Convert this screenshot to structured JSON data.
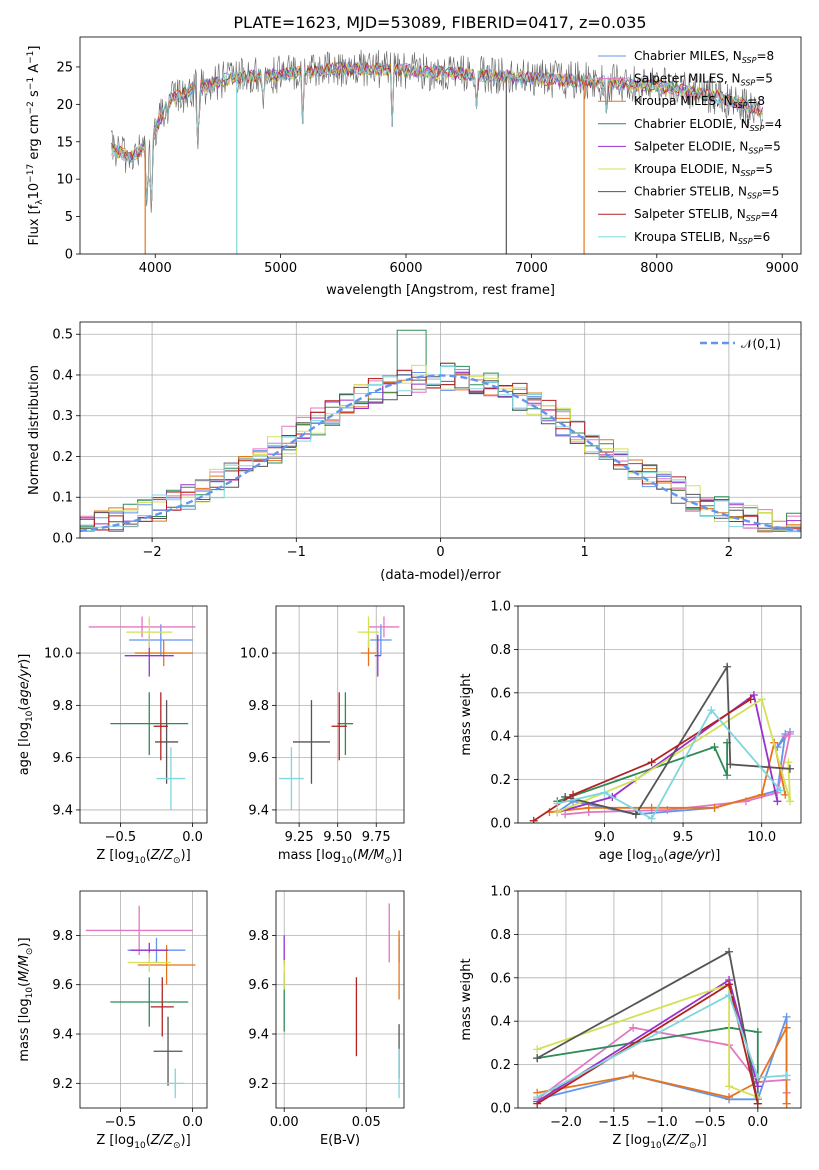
{
  "figure": {
    "title": "PLATE=1623, MJD=53089, FIBERID=0417, z=0.035",
    "models": [
      {
        "name": "Chabrier MILES, N",
        "nssp": "=8",
        "color": "#6495ed"
      },
      {
        "name": "Salpeter MILES, N",
        "nssp": "=5",
        "color": "#e377c2"
      },
      {
        "name": "Kroupa MILES, N",
        "nssp": "=8",
        "color": "#b8860b"
      },
      {
        "name": "Chabrier ELODIE, N",
        "nssp": "=4",
        "color": "#2e8b57"
      },
      {
        "name": "Salpeter ELODIE, N",
        "nssp": "=5",
        "color": "#9932cc"
      },
      {
        "name": "Kroupa ELODIE, N",
        "nssp": "=5",
        "color": "#d4e157"
      },
      {
        "name": "Chabrier STELIB, N",
        "nssp": "=5",
        "color": "#555555"
      },
      {
        "name": "Salpeter STELIB, N",
        "nssp": "=4",
        "color": "#b22222"
      },
      {
        "name": "Kroupa STELIB, N",
        "nssp": "=6",
        "color": "#7fd6dc"
      }
    ],
    "ssp_subscript": "SSP",
    "extra_colors": {
      "orange": "#e8741a"
    }
  },
  "chart_data": [
    {
      "id": "spectrum",
      "type": "line",
      "title": "PLATE=1623, MJD=53089, FIBERID=0417, z=0.035",
      "xlabel": "wavelength [Angstrom, rest frame]",
      "ylabel_parts": [
        "Flux [f",
        "λ",
        "10",
        "−17",
        " erg cm",
        "−2",
        " s",
        "−1",
        " A",
        "−1",
        "]"
      ],
      "xlim": [
        3400,
        9150
      ],
      "ylim": [
        0,
        29
      ],
      "xticks": [
        4000,
        5000,
        6000,
        7000,
        8000,
        9000
      ],
      "yticks": [
        0,
        5,
        10,
        15,
        20,
        25
      ],
      "x_range_plotted": [
        3650,
        8850
      ],
      "continuum_anchors": [
        [
          3650,
          14
        ],
        [
          3800,
          13
        ],
        [
          3950,
          14.5
        ],
        [
          4100,
          20.5
        ],
        [
          4300,
          22
        ],
        [
          4600,
          23.5
        ],
        [
          5000,
          24
        ],
        [
          5500,
          24.8
        ],
        [
          6000,
          24.6
        ],
        [
          6500,
          24
        ],
        [
          7000,
          23.5
        ],
        [
          7500,
          23
        ],
        [
          8000,
          22.5
        ],
        [
          8500,
          21
        ],
        [
          8850,
          19
        ]
      ],
      "drop_to_zero_at": [
        3920,
        4650,
        6800,
        7420
      ],
      "absorption_dips": [
        [
          3933,
          6
        ],
        [
          3968,
          5.5
        ],
        [
          4101,
          17
        ],
        [
          4340,
          14
        ],
        [
          4861,
          19
        ],
        [
          5175,
          17
        ],
        [
          5890,
          17
        ],
        [
          6563,
          19
        ],
        [
          7600,
          18
        ]
      ],
      "grid": false,
      "legend": "top-right"
    },
    {
      "id": "residual-histogram",
      "type": "histogram",
      "xlabel": "(data-model)/error",
      "ylabel": "Normed distribution",
      "xlim": [
        -2.5,
        2.5
      ],
      "ylim": [
        0,
        0.53
      ],
      "xticks": [
        -2,
        -1,
        0,
        1,
        2
      ],
      "yticks": [
        0.0,
        0.1,
        0.2,
        0.3,
        0.4,
        0.5
      ],
      "bin_width": 0.1,
      "peak_value": 0.51,
      "peak_at": -0.2,
      "reference_curve": {
        "label": "𝒩(0,1)",
        "mean": 0,
        "sigma": 1
      },
      "grid": true,
      "legend": "top-right"
    },
    {
      "id": "age-vs-Z",
      "type": "errorbar",
      "xlabel": "Z [log10(Z/Z⊙)]",
      "ylabel": "age  [log10(age/yr)]",
      "xlim": [
        -0.78,
        0.1
      ],
      "ylim": [
        9.35,
        10.18
      ],
      "xticks": [
        -0.5,
        0.0
      ],
      "yticks": [
        9.4,
        9.6,
        9.8,
        10.0
      ],
      "points": [
        {
          "model": 0,
          "x": -0.22,
          "y": 10.05,
          "xerr": 0.22,
          "yerr": 0.06
        },
        {
          "model": 1,
          "x": -0.35,
          "y": 10.1,
          "xerr": 0.37,
          "yerr": 0.04
        },
        {
          "model": 2,
          "x": -0.2,
          "y": 10.0,
          "xerr": 0.2,
          "yerr": 0.05
        },
        {
          "model": 3,
          "x": -0.3,
          "y": 9.73,
          "xerr": 0.27,
          "yerr": 0.12
        },
        {
          "model": 4,
          "x": -0.3,
          "y": 9.99,
          "xerr": 0.17,
          "yerr": 0.08
        },
        {
          "model": 5,
          "x": -0.3,
          "y": 10.08,
          "xerr": 0.16,
          "yerr": 0.06
        },
        {
          "model": 6,
          "x": -0.18,
          "y": 9.66,
          "xerr": 0.08,
          "yerr": 0.16
        },
        {
          "model": 7,
          "x": -0.22,
          "y": 9.72,
          "xerr": 0.05,
          "yerr": 0.13
        },
        {
          "model": 8,
          "x": -0.15,
          "y": 9.52,
          "xerr": 0.1,
          "yerr": 0.12
        }
      ],
      "grid": true
    },
    {
      "id": "age-vs-mass",
      "type": "errorbar",
      "xlabel": "mass [log10(M/M⊙)]",
      "ylabel": "",
      "xlim": [
        9.1,
        9.93
      ],
      "ylim": [
        9.35,
        10.18
      ],
      "xticks": [
        9.25,
        9.5,
        9.75
      ],
      "yticks": [
        9.4,
        9.6,
        9.8,
        10.0
      ],
      "points": [
        {
          "model": 0,
          "x": 9.78,
          "y": 10.05,
          "xerr": 0.07,
          "yerr": 0.06
        },
        {
          "model": 1,
          "x": 9.8,
          "y": 10.1,
          "xerr": 0.1,
          "yerr": 0.04
        },
        {
          "model": 2,
          "x": 9.7,
          "y": 10.0,
          "xerr": 0.05,
          "yerr": 0.05
        },
        {
          "model": 3,
          "x": 9.55,
          "y": 9.73,
          "xerr": 0.05,
          "yerr": 0.12
        },
        {
          "model": 4,
          "x": 9.76,
          "y": 9.99,
          "xerr": 0.02,
          "yerr": 0.08
        },
        {
          "model": 5,
          "x": 9.7,
          "y": 10.08,
          "xerr": 0.07,
          "yerr": 0.06
        },
        {
          "model": 6,
          "x": 9.33,
          "y": 9.66,
          "xerr": 0.12,
          "yerr": 0.16
        },
        {
          "model": 7,
          "x": 9.51,
          "y": 9.72,
          "xerr": 0.05,
          "yerr": 0.13
        },
        {
          "model": 8,
          "x": 9.2,
          "y": 9.52,
          "xerr": 0.08,
          "yerr": 0.12
        }
      ],
      "grid": true
    },
    {
      "id": "weight-vs-age",
      "type": "line",
      "xlabel": "age  [log10(age/yr)]",
      "ylabel": "mass weight",
      "xlim": [
        8.45,
        10.25
      ],
      "ylim": [
        0,
        1.0
      ],
      "xticks": [
        9.0,
        9.5,
        10.0
      ],
      "yticks": [
        0.0,
        0.2,
        0.4,
        0.6,
        0.8,
        1.0
      ],
      "series": [
        {
          "model": 0,
          "points": [
            [
              8.7,
              0.05
            ],
            [
              8.8,
              0.1
            ],
            [
              9.2,
              0.04
            ],
            [
              9.7,
              0.07
            ],
            [
              10.1,
              0.15
            ],
            [
              10.15,
              0.41
            ],
            [
              10.1,
              0.35
            ],
            [
              10.18,
              0.42
            ]
          ]
        },
        {
          "model": 1,
          "points": [
            [
              8.75,
              0.04
            ],
            [
              8.9,
              0.05
            ],
            [
              9.4,
              0.06
            ],
            [
              9.9,
              0.1
            ],
            [
              10.1,
              0.14
            ],
            [
              10.18,
              0.41
            ],
            [
              10.15,
              0.4
            ]
          ]
        },
        {
          "model": 2,
          "points": [
            [
              8.65,
              0.05
            ],
            [
              8.9,
              0.07
            ],
            [
              9.3,
              0.07
            ],
            [
              9.7,
              0.07
            ],
            [
              10.0,
              0.13
            ],
            [
              10.08,
              0.37
            ],
            [
              10.15,
              0.13
            ]
          ]
        },
        {
          "model": 3,
          "points": [
            [
              8.7,
              0.1
            ],
            [
              9.7,
              0.35
            ],
            [
              9.78,
              0.22
            ],
            [
              9.78,
              0.37
            ]
          ]
        },
        {
          "model": 4,
          "points": [
            [
              8.7,
              0.05
            ],
            [
              9.05,
              0.12
            ],
            [
              9.95,
              0.59
            ],
            [
              10.1,
              0.1
            ]
          ]
        },
        {
          "model": 5,
          "points": [
            [
              8.7,
              0.05
            ],
            [
              9.2,
              0.2
            ],
            [
              10.0,
              0.57
            ],
            [
              10.18,
              0.1
            ],
            [
              10.17,
              0.28
            ]
          ]
        },
        {
          "model": 6,
          "points": [
            [
              8.75,
              0.12
            ],
            [
              9.2,
              0.04
            ],
            [
              9.78,
              0.72
            ],
            [
              9.8,
              0.27
            ],
            [
              10.18,
              0.25
            ]
          ]
        },
        {
          "model": 7,
          "points": [
            [
              8.55,
              0.01
            ],
            [
              8.8,
              0.13
            ],
            [
              9.3,
              0.28
            ],
            [
              9.93,
              0.57
            ]
          ]
        },
        {
          "model": 8,
          "points": [
            [
              8.7,
              0.09
            ],
            [
              9.0,
              0.14
            ],
            [
              9.3,
              0.02
            ],
            [
              9.68,
              0.52
            ],
            [
              10.12,
              0.15
            ]
          ]
        }
      ],
      "grid": true
    },
    {
      "id": "mass-vs-Z",
      "type": "errorbar",
      "xlabel": "Z [log10(Z/Z⊙)]",
      "ylabel": "mass [log10(M/M⊙)]",
      "xlim": [
        -0.78,
        0.1
      ],
      "ylim": [
        9.1,
        9.98
      ],
      "xticks": [
        -0.5,
        0.0
      ],
      "yticks": [
        9.2,
        9.4,
        9.6,
        9.8
      ],
      "points": [
        {
          "model": 0,
          "x": -0.25,
          "y": 9.74,
          "xerr": 0.2,
          "yerr": 0.05
        },
        {
          "model": 1,
          "x": -0.37,
          "y": 9.82,
          "xerr": 0.37,
          "yerr": 0.1
        },
        {
          "model": 2,
          "x": -0.18,
          "y": 9.68,
          "xerr": 0.2,
          "yerr": 0.08
        },
        {
          "model": 3,
          "x": -0.3,
          "y": 9.53,
          "xerr": 0.27,
          "yerr": 0.1
        },
        {
          "model": 4,
          "x": -0.3,
          "y": 9.74,
          "xerr": 0.13,
          "yerr": 0.03
        },
        {
          "model": 5,
          "x": -0.3,
          "y": 9.69,
          "xerr": 0.15,
          "yerr": 0.04
        },
        {
          "model": 6,
          "x": -0.17,
          "y": 9.33,
          "xerr": 0.1,
          "yerr": 0.14
        },
        {
          "model": 7,
          "x": -0.21,
          "y": 9.51,
          "xerr": 0.08,
          "yerr": 0.12
        },
        {
          "model": 8,
          "x": -0.12,
          "y": 9.2,
          "xerr": 0.06,
          "yerr": 0.06
        }
      ],
      "grid": true
    },
    {
      "id": "mass-vs-ebv",
      "type": "errorbar",
      "xlabel": "E(B-V)",
      "ylabel": "",
      "xlim": [
        -0.005,
        0.073
      ],
      "ylim": [
        9.1,
        9.98
      ],
      "xticks": [
        0.0,
        0.05
      ],
      "yticks": [
        9.2,
        9.4,
        9.6,
        9.8
      ],
      "points": [
        {
          "model": 0,
          "x": 0.07,
          "y": 9.74,
          "xerr": 0,
          "yerr": 0.05
        },
        {
          "model": 1,
          "x": 0.064,
          "y": 9.81,
          "xerr": 0,
          "yerr": 0.12
        },
        {
          "model": 2,
          "x": 0.07,
          "y": 9.68,
          "xerr": 0,
          "yerr": 0.14
        },
        {
          "model": 3,
          "x": 0.0,
          "y": 9.53,
          "xerr": 0,
          "yerr": 0.12
        },
        {
          "model": 4,
          "x": 0.0,
          "y": 9.74,
          "xerr": 0,
          "yerr": 0.06
        },
        {
          "model": 5,
          "x": 0.0,
          "y": 9.64,
          "xerr": 0,
          "yerr": 0.06
        },
        {
          "model": 6,
          "x": 0.07,
          "y": 9.33,
          "xerr": 0,
          "yerr": 0.11
        },
        {
          "model": 7,
          "x": 0.044,
          "y": 9.47,
          "xerr": 0,
          "yerr": 0.16
        },
        {
          "model": 8,
          "x": 0.07,
          "y": 9.24,
          "xerr": 0,
          "yerr": 0.1
        }
      ],
      "grid": true
    },
    {
      "id": "weight-vs-Z",
      "type": "line",
      "xlabel": "Z [log10(Z/Z⊙)]",
      "ylabel": "mass weight",
      "xlim": [
        -2.5,
        0.45
      ],
      "ylim": [
        0,
        1.0
      ],
      "xticks": [
        -2.0,
        -1.5,
        -1.0,
        -0.5,
        0.0
      ],
      "yticks": [
        0.0,
        0.2,
        0.4,
        0.6,
        0.8,
        1.0
      ],
      "series": [
        {
          "model": 0,
          "points": [
            [
              -2.3,
              0.04
            ],
            [
              -1.3,
              0.15
            ],
            [
              -0.3,
              0.04
            ],
            [
              0.0,
              0.04
            ],
            [
              0.3,
              0.42
            ],
            [
              0.3,
              0.37
            ],
            [
              0.3,
              0.02
            ]
          ]
        },
        {
          "model": 1,
          "points": [
            [
              -2.3,
              0.04
            ],
            [
              -1.3,
              0.37
            ],
            [
              -0.3,
              0.29
            ],
            [
              0.0,
              0.12
            ],
            [
              0.3,
              0.13
            ],
            [
              0.3,
              0.07
            ]
          ]
        },
        {
          "model": 2,
          "points": [
            [
              -2.3,
              0.07
            ],
            [
              -1.3,
              0.15
            ],
            [
              -0.3,
              0.05
            ],
            [
              0.0,
              0.12
            ],
            [
              0.3,
              0.37
            ],
            [
              0.3,
              0.02
            ]
          ]
        },
        {
          "model": 3,
          "points": [
            [
              -2.3,
              0.23
            ],
            [
              -0.3,
              0.37
            ],
            [
              0.0,
              0.35
            ],
            [
              0.0,
              0.02
            ]
          ]
        },
        {
          "model": 4,
          "points": [
            [
              -2.3,
              0.03
            ],
            [
              -0.3,
              0.59
            ],
            [
              0.0,
              0.1
            ]
          ]
        },
        {
          "model": 5,
          "points": [
            [
              -2.3,
              0.27
            ],
            [
              -0.3,
              0.57
            ],
            [
              -0.3,
              0.1
            ],
            [
              0.0,
              0.05
            ]
          ]
        },
        {
          "model": 6,
          "points": [
            [
              -2.3,
              0.23
            ],
            [
              -0.3,
              0.72
            ],
            [
              0.0,
              0.02
            ]
          ]
        },
        {
          "model": 7,
          "points": [
            [
              -2.3,
              0.02
            ],
            [
              -0.3,
              0.57
            ],
            [
              0.0,
              0.02
            ]
          ]
        },
        {
          "model": 8,
          "points": [
            [
              -2.3,
              0.05
            ],
            [
              -0.3,
              0.52
            ],
            [
              0.0,
              0.14
            ],
            [
              0.3,
              0.15
            ]
          ]
        }
      ],
      "grid": true
    }
  ]
}
